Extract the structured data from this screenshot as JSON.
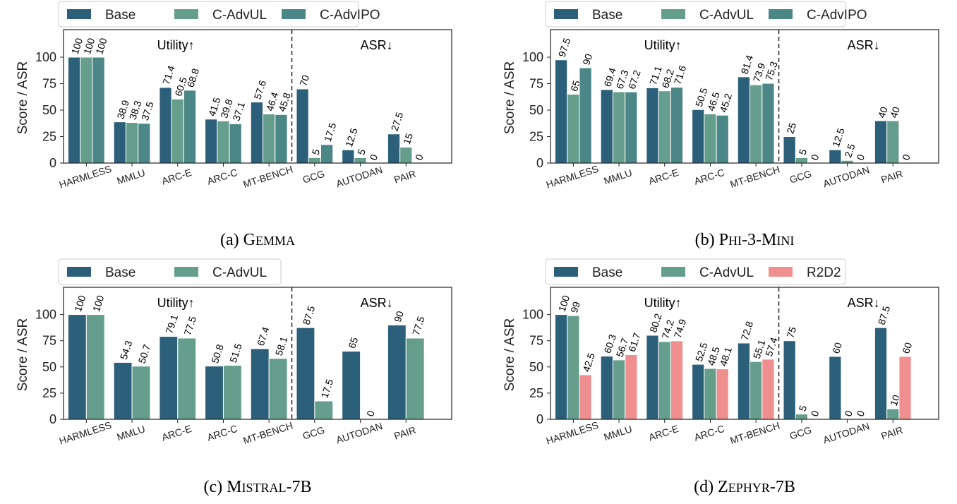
{
  "colors": {
    "Base": "#2b5f7a",
    "C-AdvUL": "#669e8e",
    "C-AdvIPO": "#4b8787",
    "R2D2": "#ef8f8f"
  },
  "chart_data": [
    {
      "type": "bar",
      "caption": "(a) Gemma",
      "ylabel": "Score / ASR",
      "ylim": [
        0,
        126
      ],
      "yticks": [
        0,
        25,
        50,
        75,
        100
      ],
      "categories": [
        "HARMLESS",
        "MMLU",
        "ARC-E",
        "ARC-C",
        "MT-BENCH",
        "GCG",
        "AUTODAN",
        "PAIR"
      ],
      "annotations": {
        "utility": "Utility",
        "asr": "ASR"
      },
      "legend": "top-left",
      "series": [
        {
          "name": "Base",
          "values": [
            100,
            38.9,
            71.4,
            41.5,
            57.6,
            70,
            12.5,
            27.5
          ]
        },
        {
          "name": "C-AdvUL",
          "values": [
            100,
            38.3,
            60.5,
            39.8,
            46.4,
            5,
            5,
            15
          ]
        },
        {
          "name": "C-AdvIPO",
          "values": [
            100,
            37.5,
            68.8,
            37.1,
            45.8,
            17.5,
            0,
            0
          ]
        }
      ]
    },
    {
      "type": "bar",
      "caption": "(b) Phi-3-Mini",
      "ylabel": "Score / ASR",
      "ylim": [
        0,
        126
      ],
      "yticks": [
        0,
        25,
        50,
        75,
        100
      ],
      "categories": [
        "HARMLESS",
        "MMLU",
        "ARC-E",
        "ARC-C",
        "MT-BENCH",
        "GCG",
        "AUTODAN",
        "PAIR"
      ],
      "annotations": {
        "utility": "Utility",
        "asr": "ASR"
      },
      "legend": "top-left",
      "series": [
        {
          "name": "Base",
          "values": [
            97.5,
            69.4,
            71.1,
            50.5,
            81.4,
            25,
            12.5,
            40
          ]
        },
        {
          "name": "C-AdvUL",
          "values": [
            65,
            67.3,
            68.2,
            46.5,
            73.9,
            5,
            2.5,
            40
          ]
        },
        {
          "name": "C-AdvIPO",
          "values": [
            90,
            67.2,
            71.6,
            45.2,
            75.3,
            0,
            0,
            0
          ]
        }
      ]
    },
    {
      "type": "bar",
      "caption": "(c) Mistral-7B",
      "ylabel": "Score / ASR",
      "ylim": [
        0,
        126
      ],
      "yticks": [
        0,
        25,
        50,
        75,
        100
      ],
      "categories": [
        "HARMLESS",
        "MMLU",
        "ARC-E",
        "ARC-C",
        "MT-BENCH",
        "GCG",
        "AUTODAN",
        "PAIR"
      ],
      "annotations": {
        "utility": "Utility",
        "asr": "ASR"
      },
      "legend": "top-left",
      "series": [
        {
          "name": "Base",
          "values": [
            100,
            54.3,
            79.1,
            50.8,
            67.4,
            87.5,
            65,
            90
          ]
        },
        {
          "name": "C-AdvUL",
          "values": [
            100,
            50.7,
            77.5,
            51.5,
            58.1,
            17.5,
            0,
            77.5
          ]
        }
      ]
    },
    {
      "type": "bar",
      "caption": "(d) Zephyr-7B",
      "ylabel": "Score / ASR",
      "ylim": [
        0,
        126
      ],
      "yticks": [
        0,
        25,
        50,
        75,
        100
      ],
      "categories": [
        "HARMLESS",
        "MMLU",
        "ARC-E",
        "ARC-C",
        "MT-BENCH",
        "GCG",
        "AUTODAN",
        "PAIR"
      ],
      "annotations": {
        "utility": "Utility",
        "asr": "ASR"
      },
      "legend": "top-left",
      "series": [
        {
          "name": "Base",
          "values": [
            100,
            60.3,
            80.2,
            52.5,
            72.8,
            75,
            60,
            87.5
          ]
        },
        {
          "name": "C-AdvUL",
          "values": [
            99,
            56.7,
            74.2,
            48.5,
            55.1,
            5,
            0,
            10
          ]
        },
        {
          "name": "R2D2",
          "values": [
            42.5,
            61.7,
            74.9,
            48.1,
            57.4,
            0,
            0,
            60
          ]
        }
      ]
    }
  ]
}
